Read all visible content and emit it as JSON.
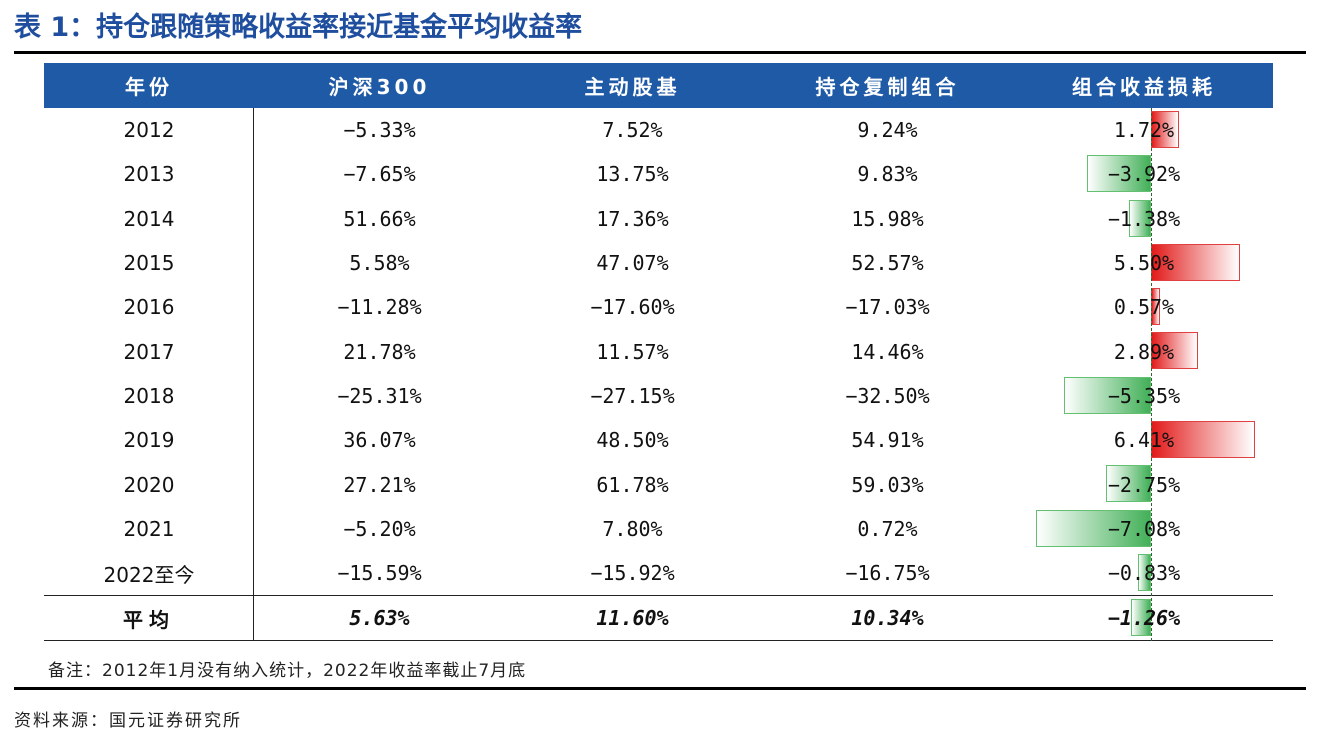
{
  "title": "表 1：持仓跟随策略收益率接近基金平均收益率",
  "headers": [
    "年份",
    "沪深300",
    "主动股基",
    "持仓复制组合",
    "组合收益损耗"
  ],
  "rows": [
    {
      "year": "2012",
      "hs300": "−5.33%",
      "active": "7.52%",
      "replica": "9.24%",
      "loss": "1.72%",
      "loss_value": 1.72
    },
    {
      "year": "2013",
      "hs300": "−7.65%",
      "active": "13.75%",
      "replica": "9.83%",
      "loss": "−3.92%",
      "loss_value": -3.92
    },
    {
      "year": "2014",
      "hs300": "51.66%",
      "active": "17.36%",
      "replica": "15.98%",
      "loss": "−1.38%",
      "loss_value": -1.38
    },
    {
      "year": "2015",
      "hs300": "5.58%",
      "active": "47.07%",
      "replica": "52.57%",
      "loss": "5.50%",
      "loss_value": 5.5
    },
    {
      "year": "2016",
      "hs300": "−11.28%",
      "active": "−17.60%",
      "replica": "−17.03%",
      "loss": "0.57%",
      "loss_value": 0.57
    },
    {
      "year": "2017",
      "hs300": "21.78%",
      "active": "11.57%",
      "replica": "14.46%",
      "loss": "2.89%",
      "loss_value": 2.89
    },
    {
      "year": "2018",
      "hs300": "−25.31%",
      "active": "−27.15%",
      "replica": "−32.50%",
      "loss": "−5.35%",
      "loss_value": -5.35
    },
    {
      "year": "2019",
      "hs300": "36.07%",
      "active": "48.50%",
      "replica": "54.91%",
      "loss": "6.41%",
      "loss_value": 6.41
    },
    {
      "year": "2020",
      "hs300": "27.21%",
      "active": "61.78%",
      "replica": "59.03%",
      "loss": "−2.75%",
      "loss_value": -2.75
    },
    {
      "year": "2021",
      "hs300": "−5.20%",
      "active": "7.80%",
      "replica": "0.72%",
      "loss": "−7.08%",
      "loss_value": -7.08
    },
    {
      "year": "2022至今",
      "hs300": "−15.59%",
      "active": "−15.92%",
      "replica": "−16.75%",
      "loss": "−0.83%",
      "loss_value": -0.83
    }
  ],
  "average": {
    "year": "平均",
    "hs300": "5.63%",
    "active": "11.60%",
    "replica": "10.34%",
    "loss": "−1.26%",
    "loss_value": -1.26
  },
  "note": "备注：2012年1月没有纳入统计，2022年收益率截止7月底",
  "source": "资料来源：国元证券研究所",
  "colors": {
    "header_bg": "#1F5AA6",
    "title": "#1F4E9E",
    "positive_bar": "#e21a1a",
    "negative_bar": "#42b058"
  }
}
